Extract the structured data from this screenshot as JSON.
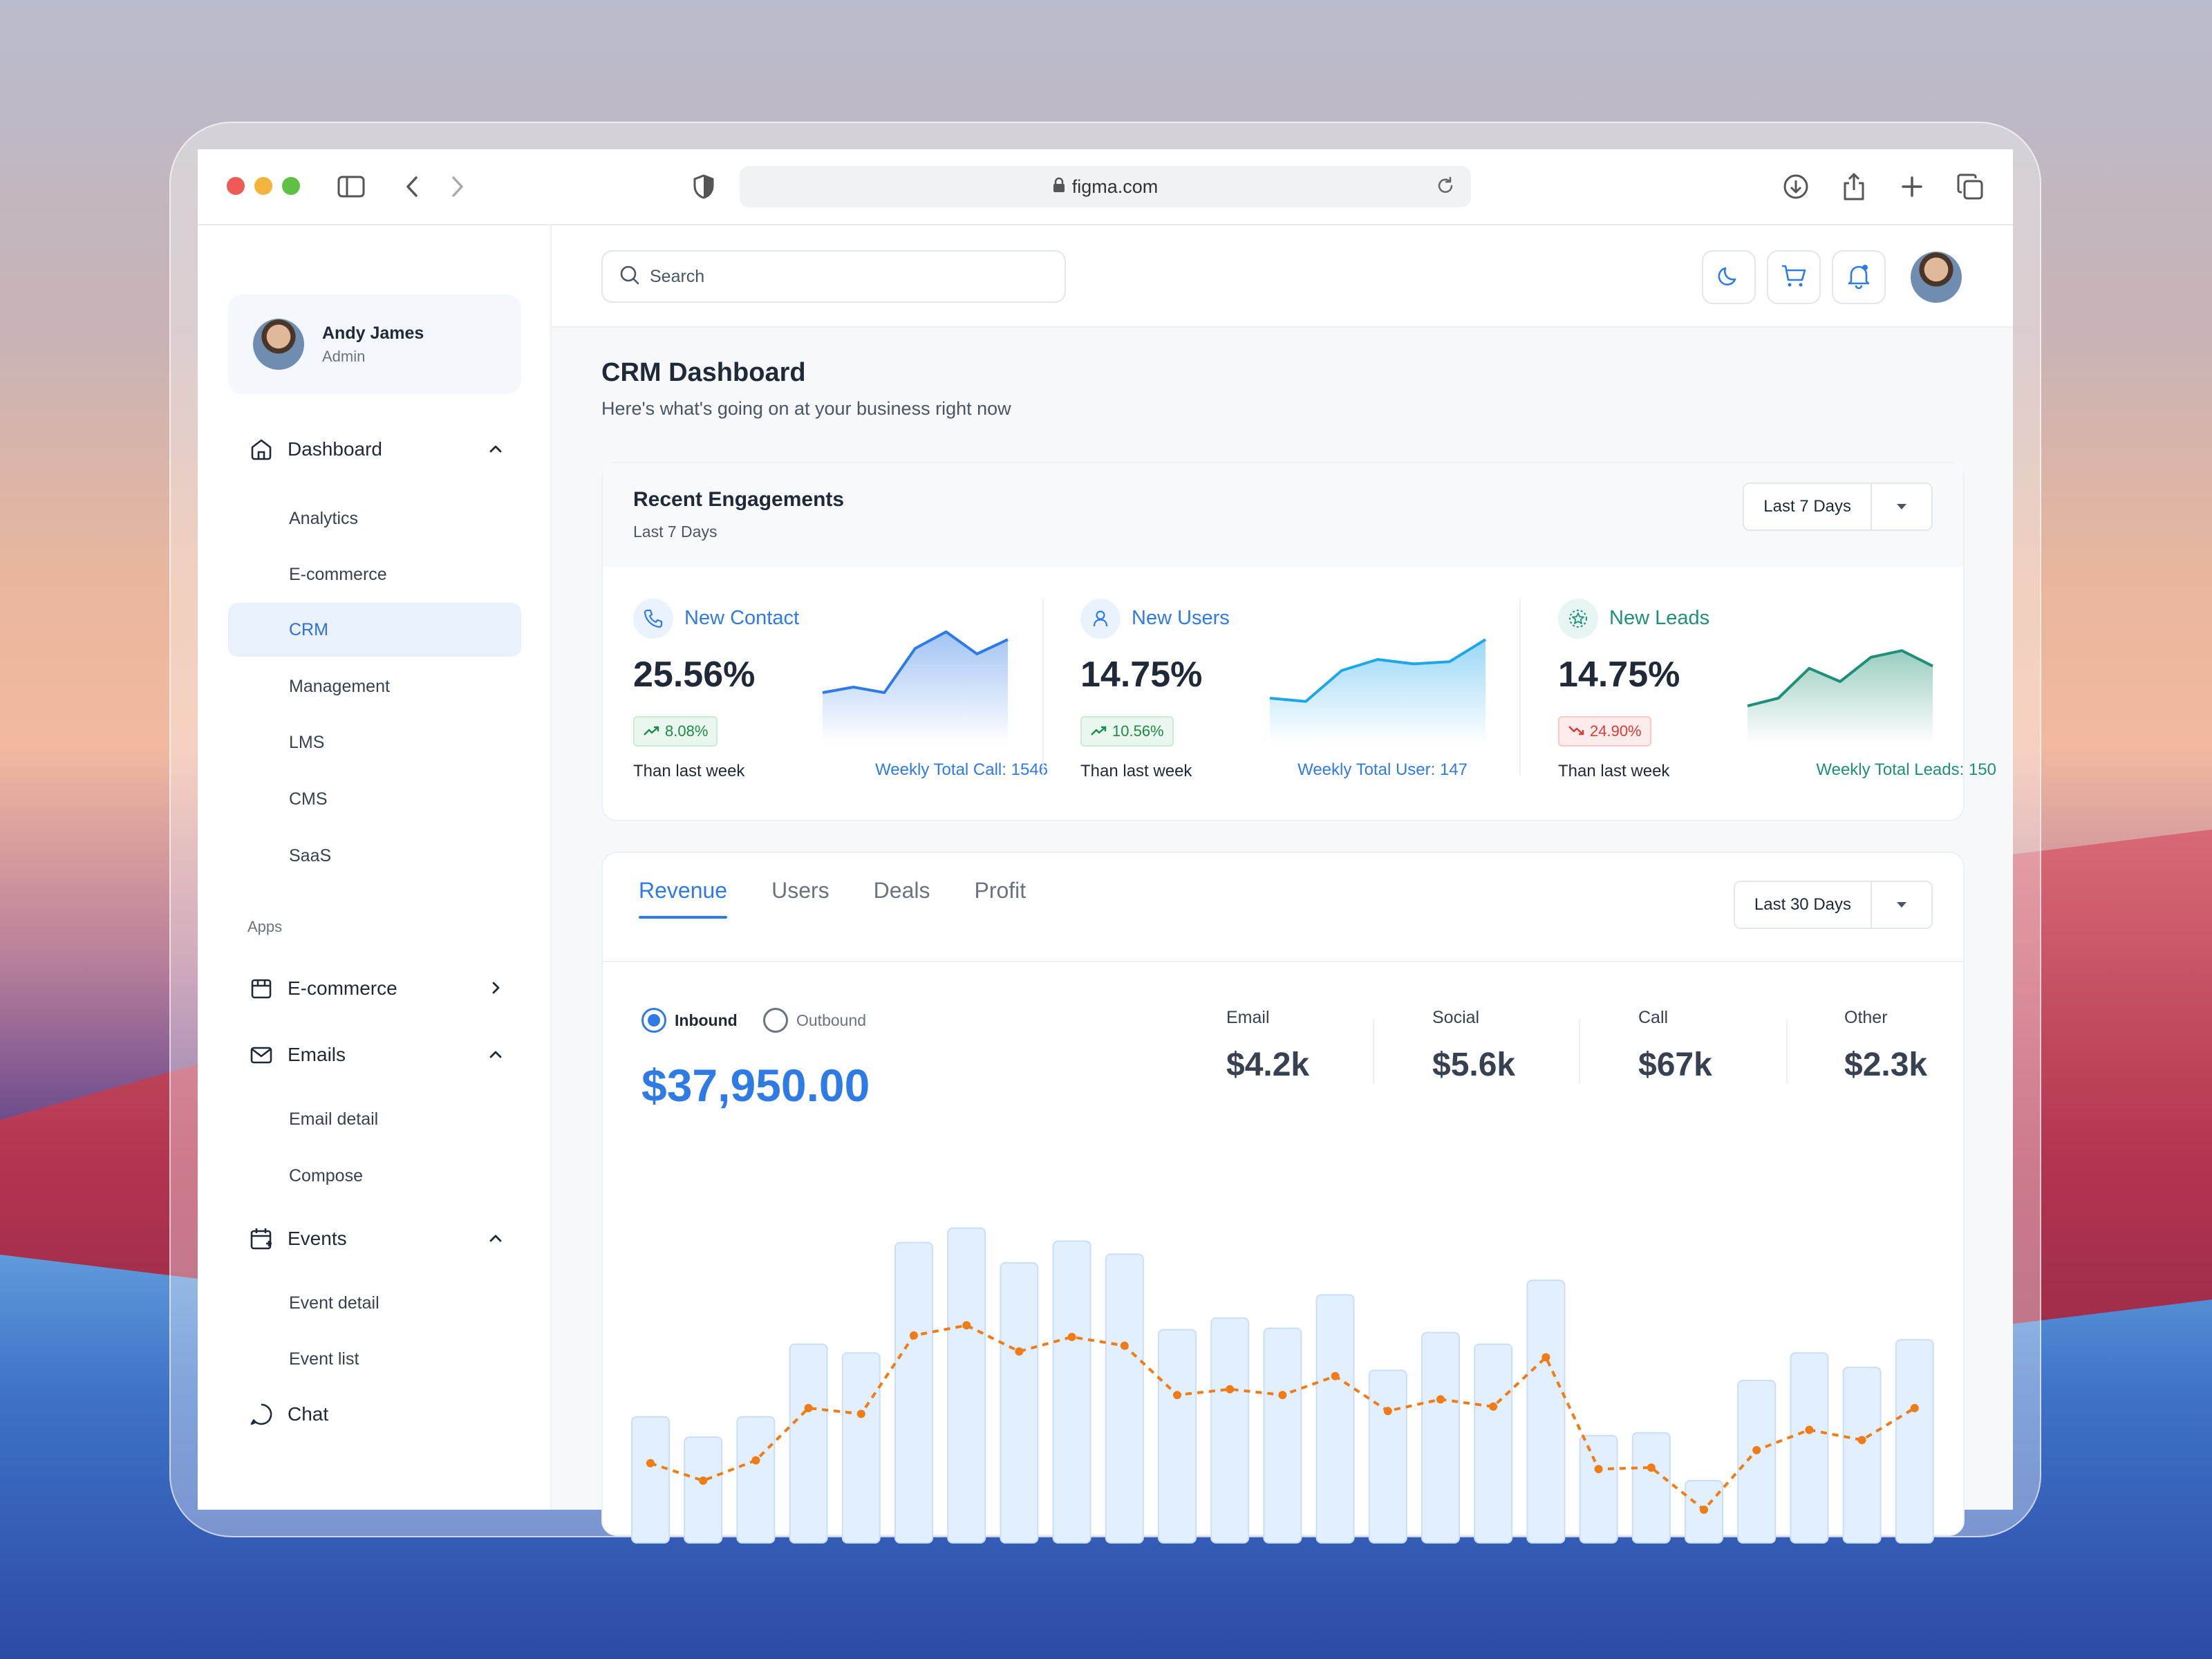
{
  "browser": {
    "url": "figma.com"
  },
  "sidebar": {
    "profile": {
      "name": "Andy James",
      "role": "Admin"
    },
    "dashboard": {
      "label": "Dashboard",
      "items": [
        "Analytics",
        "E-commerce",
        "CRM",
        "Management",
        "LMS",
        "CMS",
        "SaaS"
      ]
    },
    "apps_label": "Apps",
    "ecommerce": {
      "label": "E-commerce"
    },
    "emails": {
      "label": "Emails",
      "items": [
        "Email detail",
        "Compose"
      ]
    },
    "events": {
      "label": "Events",
      "items": [
        "Event detail",
        "Event list"
      ]
    },
    "chat": {
      "label": "Chat"
    }
  },
  "topbar": {
    "search_placeholder": "Search"
  },
  "page": {
    "title": "CRM Dashboard",
    "subtitle": "Here's what's going on at your business right now"
  },
  "engagements": {
    "title": "Recent Engagements",
    "subtitle": "Last 7 Days",
    "range": "Last 7 Days",
    "metrics": [
      {
        "label": "New Contact",
        "value": "25.56%",
        "change": "8.08%",
        "trend": "up",
        "foot": "Than last week",
        "total": "Weekly Total Call: 1546",
        "color": "#2f7be5",
        "spark": [
          40,
          45,
          40,
          80,
          95,
          75,
          88
        ]
      },
      {
        "label": "New Users",
        "value": "14.75%",
        "change": "10.56%",
        "trend": "up",
        "foot": "Than last week",
        "total": "Weekly Total User: 147",
        "color": "#1ea7e8",
        "spark": [
          35,
          32,
          60,
          70,
          66,
          68,
          88
        ]
      },
      {
        "label": "New Leads",
        "value": "14.75%",
        "change": "24.90%",
        "trend": "down",
        "foot": "Than last week",
        "total": "Weekly Total Leads: 150",
        "color": "#1f9077",
        "spark": [
          28,
          35,
          62,
          50,
          72,
          78,
          64
        ]
      }
    ]
  },
  "revenue": {
    "tabs": [
      "Revenue",
      "Users",
      "Deals",
      "Profit"
    ],
    "active_tab": "Revenue",
    "range": "Last 30 Days",
    "radio": {
      "inbound": "Inbound",
      "outbound": "Outbound",
      "selected": "inbound"
    },
    "amount": "$37,950.00",
    "stats": [
      {
        "label": "Email",
        "value": "$4.2k"
      },
      {
        "label": "Social",
        "value": "$5.6k"
      },
      {
        "label": "Call",
        "value": "$67k"
      },
      {
        "label": "Other",
        "value": "$2.3k"
      }
    ]
  },
  "chart_data": {
    "type": "bar",
    "series": [
      {
        "values": [
          84,
          70,
          84,
          134,
          128,
          204,
          214,
          190,
          205,
          196,
          144,
          152,
          145,
          168,
          116,
          142,
          134,
          178,
          71,
          73,
          40,
          109,
          128,
          118,
          137
        ]
      },
      {
        "values": [
          52,
          40,
          54,
          90,
          86,
          140,
          147,
          129,
          139,
          133,
          99,
          103,
          99,
          112,
          88,
          96,
          91,
          125,
          48,
          49,
          20,
          61,
          75,
          68,
          90
        ]
      }
    ],
    "colors": {
      "bars": "#e2efff",
      "bar_border": "#c9def8",
      "line": "#f07c17"
    }
  }
}
